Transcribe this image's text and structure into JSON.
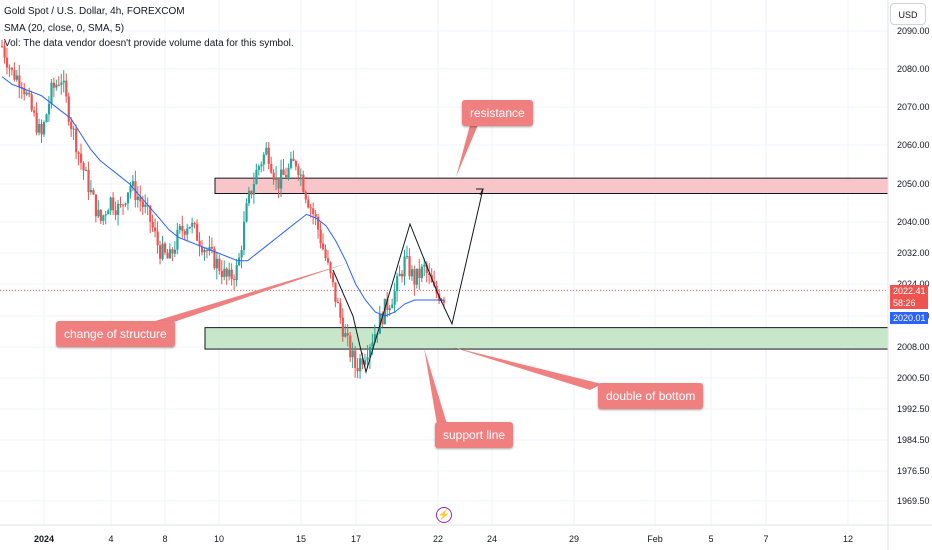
{
  "header": {
    "title": "Gold Spot / U.S. Dollar, 4h, FOREXCOM",
    "sma_legend": "SMA (20, close, 0, SMA, 5)",
    "volume_note": "Vol: The data vendor doesn't provide volume data for this symbol."
  },
  "currency_button": "USD",
  "price_tags": {
    "last": "2022.41",
    "countdown": "58:26",
    "sma": "2020.01"
  },
  "colors": {
    "up": "#26a69a",
    "down": "#ef5350",
    "sma": "#2962ff",
    "resistance_fill": "#f8c6c9",
    "support_fill": "#c8e6c9",
    "callout": "#f08080"
  },
  "annotations": {
    "resistance": "resistance",
    "change_of_structure": "change of structure",
    "double_bottom": "double of bottom",
    "support_line": "support line"
  },
  "chart_data": {
    "type": "candlestick",
    "title": "Gold Spot / U.S. Dollar, 4h, FOREXCOM",
    "xlabel": "",
    "ylabel": "",
    "ylim": [
      1966,
      2092
    ],
    "y_ticks": [
      "2090.00",
      "2080.00",
      "2070.00",
      "2060.00",
      "2050.00",
      "2040.00",
      "2032.00",
      "2024.00",
      "2016.00",
      "2008.00",
      "2000.50",
      "1992.50",
      "1984.50",
      "1976.50",
      "1969.50"
    ],
    "x_ticks": [
      "2024",
      "4",
      "8",
      "10",
      "15",
      "17",
      "22",
      "24",
      "29",
      "Feb",
      "5",
      "7",
      "12"
    ],
    "price_path": [
      2086,
      2079,
      2077,
      2069,
      2062,
      2074,
      2078,
      2066,
      2056,
      2048,
      2040,
      2046,
      2043,
      2050,
      2046,
      2041,
      2033,
      2030,
      2037,
      2040,
      2036,
      2032,
      2029,
      2025,
      2028,
      2045,
      2054,
      2059,
      2050,
      2053,
      2056,
      2047,
      2040,
      2030,
      2020,
      2010,
      2003,
      2007,
      2012,
      2018,
      2022,
      2030,
      2025,
      2028,
      2022,
      2021
    ],
    "sma_path": [
      2078,
      2076,
      2075,
      2074,
      2073,
      2071,
      2069,
      2067,
      2063,
      2059,
      2056,
      2054,
      2052,
      2050,
      2047,
      2044,
      2041,
      2038,
      2036,
      2035,
      2034,
      2033,
      2032,
      2031,
      2030,
      2030,
      2032,
      2034,
      2036,
      2038,
      2040,
      2042,
      2041,
      2039,
      2035,
      2030,
      2024,
      2020,
      2017,
      2016,
      2017,
      2019,
      2020,
      2020,
      2020,
      2020
    ],
    "resistance_zone": [
      2047.5,
      2051.5
    ],
    "support_zone": [
      2007.5,
      2013.0
    ],
    "last_price": 2022.41,
    "sma_last": 2020.01,
    "series": [
      {
        "name": "SMA (20, close, 0, SMA, 5)",
        "values": []
      }
    ]
  }
}
